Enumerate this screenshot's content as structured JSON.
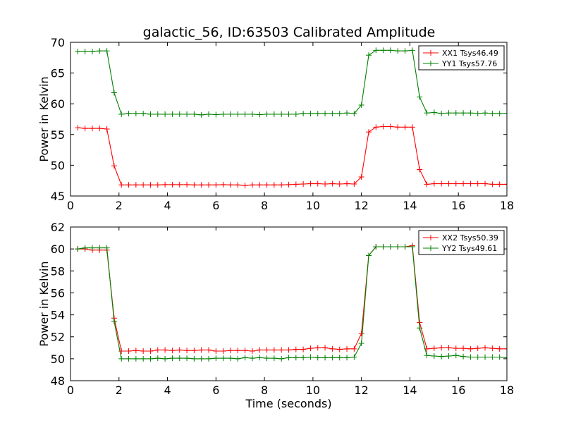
{
  "title": "galactic_56, ID:63503 Calibrated Amplitude",
  "colors": {
    "red": "#ff0000",
    "green": "#008000"
  },
  "chart_data": [
    {
      "type": "line",
      "xlabel": "",
      "ylabel": "Power in Kelvin",
      "xlim": [
        0,
        18
      ],
      "ylim": [
        45,
        70
      ],
      "xticks": [
        "0",
        "2",
        "4",
        "6",
        "8",
        "10",
        "12",
        "14",
        "16",
        "18"
      ],
      "yticks": [
        "45",
        "50",
        "55",
        "60",
        "65",
        "70"
      ],
      "legend_position": "top-right",
      "x": [
        0.3,
        0.6,
        0.9,
        1.2,
        1.5,
        1.8,
        2.1,
        2.4,
        2.7,
        3.0,
        3.3,
        3.6,
        3.9,
        4.2,
        4.5,
        4.8,
        5.1,
        5.4,
        5.7,
        6.0,
        6.3,
        6.6,
        6.9,
        7.2,
        7.5,
        7.8,
        8.1,
        8.4,
        8.7,
        9.0,
        9.3,
        9.6,
        9.9,
        10.2,
        10.5,
        10.8,
        11.1,
        11.4,
        11.7,
        12.0,
        12.3,
        12.6,
        12.9,
        13.2,
        13.5,
        13.8,
        14.1,
        14.4,
        14.7,
        15.0,
        15.3,
        15.6,
        15.9,
        16.2,
        16.5,
        16.8,
        17.1,
        17.4,
        17.7,
        18.0
      ],
      "series": [
        {
          "name": "XX1 Tsys46.49",
          "color": "#ff0000",
          "values": [
            56.1,
            56.0,
            56.0,
            56.0,
            55.9,
            49.9,
            46.8,
            46.8,
            46.8,
            46.8,
            46.8,
            46.8,
            46.85,
            46.85,
            46.85,
            46.85,
            46.8,
            46.8,
            46.8,
            46.8,
            46.85,
            46.8,
            46.8,
            46.7,
            46.8,
            46.8,
            46.8,
            46.8,
            46.8,
            46.85,
            46.9,
            46.95,
            47.0,
            47.0,
            46.95,
            47.0,
            46.95,
            47.0,
            46.95,
            48.1,
            55.4,
            56.2,
            56.3,
            56.3,
            56.2,
            56.2,
            56.2,
            49.3,
            46.9,
            47.0,
            47.0,
            47.0,
            47.0,
            47.0,
            47.0,
            47.0,
            47.0,
            46.9,
            46.9,
            46.9
          ]
        },
        {
          "name": "YY1 Tsys57.76",
          "color": "#008000",
          "values": [
            68.5,
            68.5,
            68.5,
            68.6,
            68.6,
            61.8,
            58.3,
            58.4,
            58.4,
            58.4,
            58.3,
            58.3,
            58.3,
            58.3,
            58.3,
            58.3,
            58.3,
            58.2,
            58.3,
            58.25,
            58.3,
            58.3,
            58.3,
            58.3,
            58.3,
            58.25,
            58.3,
            58.3,
            58.3,
            58.3,
            58.3,
            58.4,
            58.4,
            58.4,
            58.4,
            58.4,
            58.4,
            58.5,
            58.4,
            59.8,
            67.9,
            68.7,
            68.7,
            68.7,
            68.6,
            68.6,
            68.7,
            61.1,
            58.5,
            58.6,
            58.4,
            58.5,
            58.5,
            58.5,
            58.5,
            58.4,
            58.5,
            58.4,
            58.4,
            58.4
          ]
        }
      ]
    },
    {
      "type": "line",
      "xlabel": "Time (seconds)",
      "ylabel": "Power in Kelvin",
      "xlim": [
        0,
        18
      ],
      "ylim": [
        48,
        62
      ],
      "xticks": [
        "0",
        "2",
        "4",
        "6",
        "8",
        "10",
        "12",
        "14",
        "16",
        "18"
      ],
      "yticks": [
        "48",
        "50",
        "52",
        "54",
        "56",
        "58",
        "60",
        "62"
      ],
      "legend_position": "top-right",
      "x": [
        0.3,
        0.6,
        0.9,
        1.2,
        1.5,
        1.8,
        2.1,
        2.4,
        2.7,
        3.0,
        3.3,
        3.6,
        3.9,
        4.2,
        4.5,
        4.8,
        5.1,
        5.4,
        5.7,
        6.0,
        6.3,
        6.6,
        6.9,
        7.2,
        7.5,
        7.8,
        8.1,
        8.4,
        8.7,
        9.0,
        9.3,
        9.6,
        9.9,
        10.2,
        10.5,
        10.8,
        11.1,
        11.4,
        11.7,
        12.0,
        12.3,
        12.6,
        12.9,
        13.2,
        13.5,
        13.8,
        14.1,
        14.4,
        14.7,
        15.0,
        15.3,
        15.6,
        15.9,
        16.2,
        16.5,
        16.8,
        17.1,
        17.4,
        17.7,
        18.0
      ],
      "series": [
        {
          "name": "XX2 Tsys50.39",
          "color": "#ff0000",
          "values": [
            60.0,
            60.0,
            59.9,
            59.9,
            59.9,
            53.7,
            50.7,
            50.7,
            50.75,
            50.7,
            50.7,
            50.8,
            50.8,
            50.75,
            50.8,
            50.75,
            50.75,
            50.8,
            50.8,
            50.7,
            50.7,
            50.75,
            50.75,
            50.75,
            50.7,
            50.8,
            50.8,
            50.8,
            50.8,
            50.8,
            50.85,
            50.85,
            50.95,
            51.0,
            51.0,
            50.9,
            50.85,
            50.9,
            50.9,
            52.3,
            59.4,
            60.2,
            60.2,
            60.2,
            60.2,
            60.2,
            60.3,
            53.3,
            50.9,
            50.95,
            51.0,
            51.0,
            50.95,
            50.95,
            50.9,
            50.95,
            51.0,
            50.95,
            50.9,
            50.9
          ]
        },
        {
          "name": "YY2 Tsys49.61",
          "color": "#008000",
          "values": [
            60.0,
            60.1,
            60.1,
            60.1,
            60.1,
            53.4,
            50.0,
            50.0,
            50.0,
            50.0,
            50.0,
            50.05,
            50.0,
            50.05,
            50.05,
            50.05,
            50.0,
            50.0,
            50.0,
            50.05,
            50.05,
            50.05,
            50.0,
            50.1,
            50.05,
            50.1,
            50.05,
            50.05,
            50.0,
            50.1,
            50.1,
            50.1,
            50.15,
            50.1,
            50.1,
            50.1,
            50.1,
            50.1,
            50.15,
            51.4,
            59.4,
            60.2,
            60.2,
            60.2,
            60.2,
            60.2,
            60.2,
            52.8,
            50.3,
            50.25,
            50.2,
            50.25,
            50.3,
            50.2,
            50.15,
            50.15,
            50.15,
            50.15,
            50.15,
            50.1
          ]
        }
      ]
    }
  ]
}
